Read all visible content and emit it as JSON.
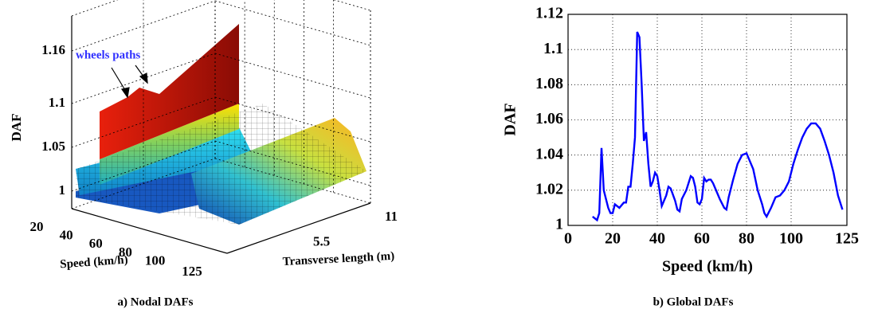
{
  "chart_data": [
    {
      "type": "surface",
      "title": "a) Nodal DAFs",
      "xlabel": "Speed (km/h)",
      "ylabel": "Transverse length (m)",
      "zlabel": "DAF",
      "annotation": "wheels paths",
      "xlim": [
        20,
        125
      ],
      "xticks": [
        20,
        40,
        60,
        80,
        100,
        125
      ],
      "ylim": [
        0,
        11
      ],
      "yticks": [
        5.5,
        11
      ],
      "zlim": [
        0.98,
        1.2
      ],
      "zticks": [
        1,
        1.05,
        1.1,
        1.16
      ],
      "grid": true
    },
    {
      "type": "line",
      "title": "b) Global DAFs",
      "xlabel": "Speed (km/h)",
      "ylabel": "DAF",
      "x": [
        11,
        13,
        14,
        15,
        16,
        18,
        19,
        20,
        21,
        23,
        25,
        26,
        27,
        28,
        29,
        30,
        31,
        32,
        33,
        34,
        35,
        36,
        37,
        38,
        39,
        40,
        41,
        42,
        44,
        45,
        46,
        48,
        49,
        50,
        51,
        53,
        55,
        56,
        57,
        58,
        59,
        60,
        61,
        62,
        63,
        64,
        65,
        66,
        68,
        70,
        71,
        72,
        74,
        76,
        78,
        80,
        81,
        83,
        85,
        87,
        88,
        89,
        91,
        93,
        95,
        97,
        99,
        101,
        103,
        105,
        107,
        109,
        111,
        113,
        115,
        117,
        119,
        121,
        123
      ],
      "series": [
        {
          "color": "#0000ff",
          "values": [
            1.005,
            1.003,
            1.007,
            1.044,
            1.02,
            1.01,
            1.007,
            1.007,
            1.012,
            1.01,
            1.013,
            1.013,
            1.022,
            1.022,
            1.035,
            1.05,
            1.11,
            1.107,
            1.08,
            1.048,
            1.053,
            1.035,
            1.022,
            1.025,
            1.03,
            1.028,
            1.02,
            1.011,
            1.017,
            1.022,
            1.021,
            1.014,
            1.009,
            1.008,
            1.015,
            1.02,
            1.028,
            1.027,
            1.022,
            1.013,
            1.012,
            1.015,
            1.027,
            1.025,
            1.026,
            1.026,
            1.024,
            1.021,
            1.015,
            1.01,
            1.009,
            1.016,
            1.026,
            1.035,
            1.04,
            1.041,
            1.038,
            1.032,
            1.02,
            1.012,
            1.007,
            1.005,
            1.01,
            1.016,
            1.017,
            1.02,
            1.025,
            1.035,
            1.043,
            1.05,
            1.055,
            1.058,
            1.058,
            1.055,
            1.048,
            1.04,
            1.03,
            1.017,
            1.009
          ]
        }
      ],
      "xlim": [
        0,
        125
      ],
      "xticks": [
        0,
        20,
        40,
        60,
        80,
        100,
        125
      ],
      "ylim": [
        1,
        1.12
      ],
      "yticks": [
        1,
        1.02,
        1.04,
        1.06,
        1.08,
        1.1,
        1.12
      ],
      "grid": true
    }
  ]
}
